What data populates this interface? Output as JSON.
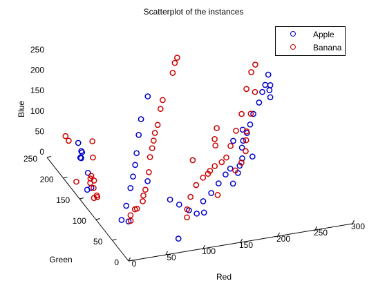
{
  "chart_data": {
    "type": "scatter",
    "projection": "3d",
    "title": "Scatterplot of the instances",
    "xlabel": "Red",
    "ylabel": "Green",
    "zlabel": "Blue",
    "xlim": [
      0,
      300
    ],
    "ylim": [
      0,
      250
    ],
    "zlim": [
      0,
      250
    ],
    "xticks": [
      "0",
      "50",
      "100",
      "150",
      "200",
      "250",
      "300"
    ],
    "yticks": [
      "0",
      "50",
      "100",
      "150",
      "200",
      "250"
    ],
    "zticks": [
      "0",
      "50",
      "100",
      "150",
      "200",
      "250"
    ],
    "grid": false,
    "legend_position": "top-right",
    "marker": "open-circle",
    "series": [
      {
        "name": "Apple",
        "color": "#0000cc",
        "points": [
          [
            10,
            137,
            37
          ],
          [
            15,
            159,
            50
          ],
          [
            17,
            184,
            60
          ],
          [
            18,
            186,
            75
          ],
          [
            12,
            170,
            90
          ],
          [
            14,
            180,
            66
          ],
          [
            8,
            145,
            25
          ],
          [
            20,
            200,
            80
          ],
          [
            30,
            90,
            0
          ],
          [
            35,
            80,
            5
          ],
          [
            45,
            110,
            10
          ],
          [
            55,
            120,
            40
          ],
          [
            62,
            128,
            58
          ],
          [
            67,
            133,
            80
          ],
          [
            72,
            140,
            100
          ],
          [
            80,
            152,
            130
          ],
          [
            88,
            163,
            155
          ],
          [
            100,
            170,
            200
          ],
          [
            78,
            120,
            50
          ],
          [
            95,
            90,
            30
          ],
          [
            105,
            85,
            20
          ],
          [
            115,
            78,
            10
          ],
          [
            122,
            70,
            8
          ],
          [
            130,
            66,
            12
          ],
          [
            135,
            80,
            24
          ],
          [
            148,
            85,
            35
          ],
          [
            160,
            90,
            50
          ],
          [
            172,
            96,
            62
          ],
          [
            180,
            100,
            70
          ],
          [
            175,
            80,
            55
          ],
          [
            185,
            88,
            70
          ],
          [
            190,
            94,
            80
          ],
          [
            196,
            100,
            90
          ],
          [
            200,
            110,
            105
          ],
          [
            206,
            120,
            110
          ],
          [
            212,
            122,
            125
          ],
          [
            218,
            126,
            140
          ],
          [
            224,
            130,
            160
          ],
          [
            230,
            126,
            190
          ],
          [
            236,
            130,
            210
          ],
          [
            240,
            130,
            226
          ],
          [
            244,
            130,
            250
          ],
          [
            248,
            133,
            220
          ],
          [
            250,
            140,
            200
          ],
          [
            252,
            142,
            180
          ],
          [
            212,
            135,
            120
          ],
          [
            208,
            96,
            95
          ],
          [
            198,
            132,
            100
          ],
          [
            80,
            30,
            0
          ]
        ]
      },
      {
        "name": "Banana",
        "color": "#cc0000",
        "points": [
          [
            20,
            160,
            40
          ],
          [
            18,
            158,
            36
          ],
          [
            22,
            156,
            32
          ],
          [
            16,
            154,
            30
          ],
          [
            5,
            195,
            95
          ],
          [
            3,
            200,
            102
          ],
          [
            0,
            160,
            32
          ],
          [
            10,
            130,
            44
          ],
          [
            12,
            125,
            30
          ],
          [
            15,
            130,
            20
          ],
          [
            14,
            138,
            10
          ],
          [
            20,
            155,
            90
          ],
          [
            25,
            168,
            115
          ],
          [
            40,
            85,
            0
          ],
          [
            42,
            90,
            8
          ],
          [
            55,
            100,
            10
          ],
          [
            65,
            105,
            20
          ],
          [
            68,
            110,
            28
          ],
          [
            75,
            120,
            30
          ],
          [
            84,
            130,
            60
          ],
          [
            90,
            140,
            85
          ],
          [
            95,
            145,
            100
          ],
          [
            100,
            152,
            110
          ],
          [
            103,
            155,
            125
          ],
          [
            108,
            158,
            140
          ],
          [
            115,
            165,
            170
          ],
          [
            120,
            170,
            185
          ],
          [
            140,
            185,
            230
          ],
          [
            145,
            190,
            248
          ],
          [
            150,
            194,
            255
          ],
          [
            135,
            112,
            92
          ],
          [
            118,
            80,
            40
          ],
          [
            110,
            72,
            20
          ],
          [
            108,
            68,
            5
          ],
          [
            130,
            90,
            55
          ],
          [
            140,
            92,
            68
          ],
          [
            148,
            95,
            72
          ],
          [
            152,
            98,
            75
          ],
          [
            160,
            102,
            80
          ],
          [
            172,
            108,
            80
          ],
          [
            180,
            112,
            85
          ],
          [
            190,
            122,
            100
          ],
          [
            200,
            128,
            128
          ],
          [
            210,
            134,
            160
          ],
          [
            220,
            142,
            210
          ],
          [
            230,
            150,
            240
          ],
          [
            238,
            156,
            250
          ],
          [
            235,
            150,
            190
          ],
          [
            225,
            140,
            150
          ],
          [
            215,
            130,
            120
          ],
          [
            210,
            120,
            110
          ],
          [
            205,
            110,
            95
          ],
          [
            195,
            100,
            80
          ],
          [
            185,
            96,
            68
          ],
          [
            150,
            70,
            45
          ],
          [
            50,
            95,
            15
          ],
          [
            175,
            130,
            140
          ],
          [
            170,
            125,
            120
          ],
          [
            168,
            118,
            112
          ]
        ]
      }
    ]
  }
}
